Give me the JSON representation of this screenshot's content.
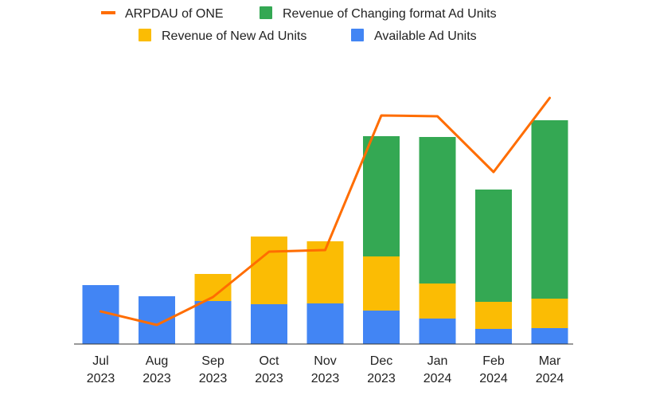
{
  "chart_data": {
    "type": "bar",
    "stacked": true,
    "categories": [
      "Jul 2023",
      "Aug 2023",
      "Sep 2023",
      "Oct 2023",
      "Nov 2023",
      "Dec 2023",
      "Jan 2024",
      "Feb 2024",
      "Mar 2024"
    ],
    "category_lines": [
      [
        "Jul",
        "2023"
      ],
      [
        "Aug",
        "2023"
      ],
      [
        "Sep",
        "2023"
      ],
      [
        "Oct",
        "2023"
      ],
      [
        "Nov",
        "2023"
      ],
      [
        "Dec",
        "2023"
      ],
      [
        "Jan",
        "2024"
      ],
      [
        "Feb",
        "2024"
      ],
      [
        "Mar",
        "2024"
      ]
    ],
    "series": [
      {
        "name": "Available Ad Units",
        "kind": "bar",
        "color": "#4285F4",
        "values": [
          74,
          60,
          54,
          50,
          51,
          42,
          32,
          19,
          20
        ]
      },
      {
        "name": "Revenue of New Ad Units",
        "kind": "bar",
        "color": "#FBBC04",
        "values": [
          0,
          0,
          34,
          85,
          78,
          68,
          44,
          34,
          37
        ]
      },
      {
        "name": "Revenue of Changing format Ad Units",
        "kind": "bar",
        "color": "#34A853",
        "values": [
          0,
          0,
          0,
          0,
          0,
          151,
          184,
          141,
          224
        ]
      },
      {
        "name": "ARPDAU of ONE",
        "kind": "line",
        "color": "#FF6D01",
        "values": [
          41,
          24,
          59,
          116,
          118,
          287,
          286,
          216,
          309
        ]
      }
    ],
    "legend": {
      "position": "top",
      "rows": [
        [
          "ARPDAU of ONE",
          "Revenue of Changing format Ad Units"
        ],
        [
          "Revenue of New Ad Units",
          "Available Ad Units"
        ]
      ]
    },
    "title": "",
    "xlabel": "",
    "ylabel": "",
    "ylim": [
      0,
      320
    ],
    "grid": false
  }
}
